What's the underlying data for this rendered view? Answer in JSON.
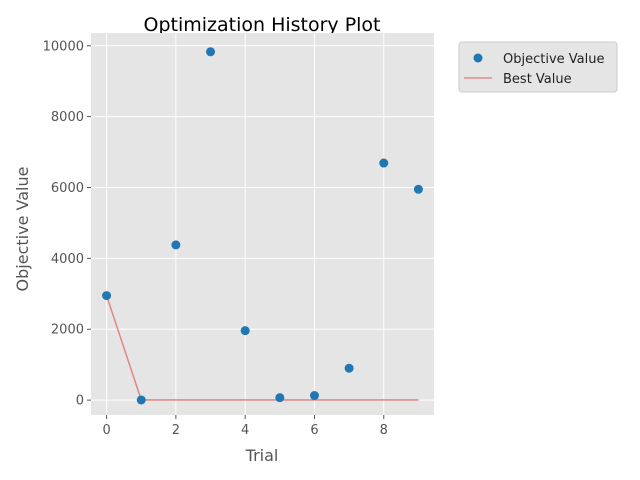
{
  "chart_data": {
    "type": "scatter",
    "title": "Optimization History Plot",
    "xlabel": "Trial",
    "ylabel": "Objective Value",
    "xlim": [
      -0.45,
      9.45
    ],
    "ylim": [
      -420,
      10360
    ],
    "x_ticks": [
      0,
      2,
      4,
      6,
      8
    ],
    "y_ticks": [
      0,
      2000,
      4000,
      6000,
      8000,
      10000
    ],
    "grid": true,
    "legend_position": "outside-top-right",
    "series": [
      {
        "name": "Objective Value",
        "kind": "scatter",
        "color": "#1f77b4",
        "x": [
          0,
          1,
          2,
          3,
          4,
          5,
          6,
          7,
          8,
          9
        ],
        "y": [
          2950,
          5,
          4380,
          9830,
          1960,
          70,
          130,
          900,
          6690,
          5950
        ]
      },
      {
        "name": "Best Value",
        "kind": "line",
        "color": "#e08b8b",
        "x": [
          0,
          1,
          2,
          3,
          4,
          5,
          6,
          7,
          8,
          9
        ],
        "y": [
          2950,
          5,
          5,
          5,
          5,
          5,
          5,
          5,
          5,
          5
        ]
      }
    ]
  },
  "colors": {
    "plot_background": "#e5e5e5",
    "grid": "#ffffff",
    "tick_text": "#555555"
  }
}
